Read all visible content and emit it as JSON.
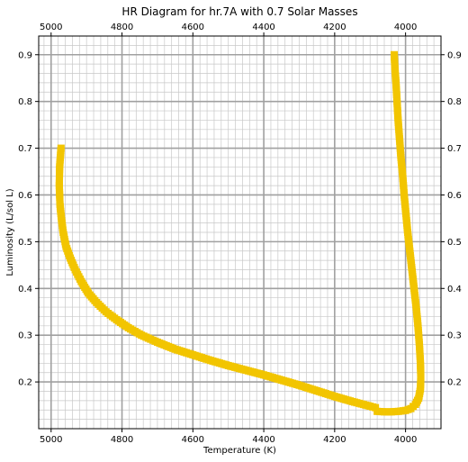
{
  "chart_data": {
    "type": "scatter",
    "title": "HR Diagram for hr.7A with 0.7 Solar Masses",
    "xlabel": "Temperature (K)",
    "ylabel": "Luminosity (L/sol L)",
    "xlim": [
      5035,
      3900
    ],
    "ylim": [
      0.1,
      0.94
    ],
    "x_ticks": [
      5000,
      4800,
      4600,
      4400,
      4200,
      4000
    ],
    "x_tick_labels": [
      "5000",
      "4800",
      "4600",
      "4400",
      "4200",
      "4000"
    ],
    "y_ticks": [
      0.2,
      0.3,
      0.4,
      0.5,
      0.6,
      0.7,
      0.8,
      0.9
    ],
    "y_tick_labels": [
      "0.2",
      "0.3",
      "0.4",
      "0.5",
      "0.6",
      "0.7",
      "0.8",
      "0.9"
    ],
    "x_minor_step": 20,
    "y_minor_step": 0.02,
    "grid": true,
    "mirrored_axes": true,
    "marker": "square",
    "marker_color": "#f2c500",
    "points": [
      [
        4972,
        0.7
      ],
      [
        4976,
        0.66
      ],
      [
        4977,
        0.62
      ],
      [
        4975,
        0.58
      ],
      [
        4971,
        0.55
      ],
      [
        4966,
        0.52
      ],
      [
        4958,
        0.49
      ],
      [
        4946,
        0.465
      ],
      [
        4932,
        0.44
      ],
      [
        4915,
        0.415
      ],
      [
        4895,
        0.39
      ],
      [
        4872,
        0.37
      ],
      [
        4845,
        0.35
      ],
      [
        4815,
        0.333
      ],
      [
        4782,
        0.316
      ],
      [
        4745,
        0.3
      ],
      [
        4700,
        0.285
      ],
      [
        4650,
        0.27
      ],
      [
        4600,
        0.258
      ],
      [
        4550,
        0.246
      ],
      [
        4500,
        0.235
      ],
      [
        4450,
        0.225
      ],
      [
        4400,
        0.215
      ],
      [
        4350,
        0.204
      ],
      [
        4300,
        0.193
      ],
      [
        4250,
        0.181
      ],
      [
        4200,
        0.169
      ],
      [
        4150,
        0.158
      ],
      [
        4100,
        0.148
      ],
      [
        4085,
        0.145
      ],
      [
        4080,
        0.137
      ],
      [
        4060,
        0.136
      ],
      [
        4040,
        0.136
      ],
      [
        4020,
        0.137
      ],
      [
        4000,
        0.139
      ],
      [
        3985,
        0.143
      ],
      [
        3972,
        0.152
      ],
      [
        3963,
        0.165
      ],
      [
        3958,
        0.185
      ],
      [
        3957,
        0.21
      ],
      [
        3958,
        0.24
      ],
      [
        3961,
        0.28
      ],
      [
        3965,
        0.32
      ],
      [
        3970,
        0.36
      ],
      [
        3976,
        0.4
      ],
      [
        3982,
        0.44
      ],
      [
        3988,
        0.48
      ],
      [
        3994,
        0.52
      ],
      [
        3999,
        0.56
      ],
      [
        4004,
        0.6
      ],
      [
        4008,
        0.64
      ],
      [
        4013,
        0.68
      ],
      [
        4017,
        0.72
      ],
      [
        4021,
        0.76
      ],
      [
        4024,
        0.8
      ],
      [
        4027,
        0.84
      ],
      [
        4030,
        0.87
      ],
      [
        4032,
        0.9
      ]
    ]
  }
}
